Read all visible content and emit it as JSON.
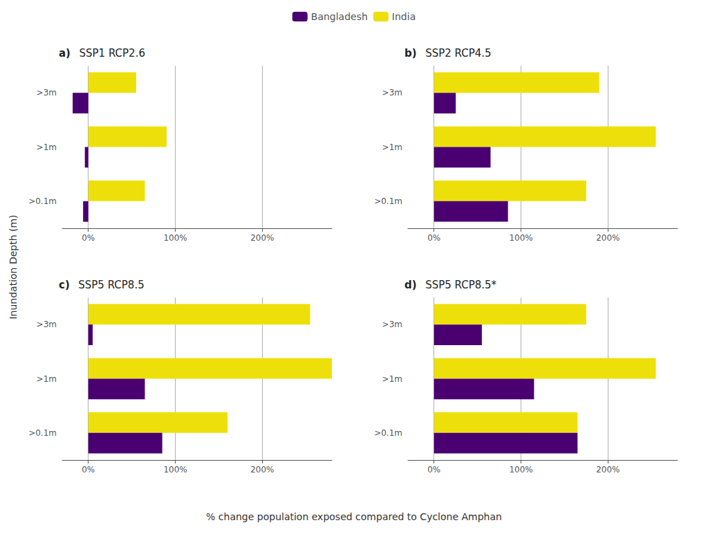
{
  "xlabel": "% change population exposed compared to Cyclone Amphan",
  "ylabel": "Inundation Depth (m)",
  "legend": "top",
  "chart_data": [
    {
      "type": "bar",
      "orientation": "horizontal",
      "title": "SSP1 RCP2.6",
      "annotations": [
        "a)"
      ],
      "categories": [
        ">3m",
        ">1m",
        ">0.1m"
      ],
      "series": [
        {
          "name": "Bangladesh",
          "color": "#4A0070",
          "values": [
            -18,
            -4,
            -6
          ]
        },
        {
          "name": "India",
          "color": "#EDE00A",
          "values": [
            55,
            90,
            65
          ]
        }
      ],
      "xlim": [
        -30,
        280
      ],
      "xticks": [
        {
          "value": 0,
          "label": "0%"
        },
        {
          "value": 100,
          "label": "100%"
        },
        {
          "value": 200,
          "label": "200%"
        }
      ],
      "grid": true
    },
    {
      "type": "bar",
      "orientation": "horizontal",
      "title": "SSP2 RCP4.5",
      "annotations": [
        "b)"
      ],
      "categories": [
        ">3m",
        ">1m",
        ">0.1m"
      ],
      "series": [
        {
          "name": "Bangladesh",
          "color": "#4A0070",
          "values": [
            25,
            65,
            85
          ]
        },
        {
          "name": "India",
          "color": "#EDE00A",
          "values": [
            190,
            255,
            175
          ]
        }
      ],
      "xlim": [
        -30,
        280
      ],
      "xticks": [
        {
          "value": 0,
          "label": "0%"
        },
        {
          "value": 100,
          "label": "100%"
        },
        {
          "value": 200,
          "label": "200%"
        }
      ],
      "grid": true
    },
    {
      "type": "bar",
      "orientation": "horizontal",
      "title": "SSP5 RCP8.5",
      "annotations": [
        "c)"
      ],
      "categories": [
        ">3m",
        ">1m",
        ">0.1m"
      ],
      "series": [
        {
          "name": "Bangladesh",
          "color": "#4A0070",
          "values": [
            5,
            65,
            85
          ]
        },
        {
          "name": "India",
          "color": "#EDE00A",
          "values": [
            255,
            280,
            160
          ]
        }
      ],
      "xlim": [
        -30,
        280
      ],
      "xticks": [
        {
          "value": 0,
          "label": "0%"
        },
        {
          "value": 100,
          "label": "100%"
        },
        {
          "value": 200,
          "label": "200%"
        }
      ],
      "grid": true
    },
    {
      "type": "bar",
      "orientation": "horizontal",
      "title": "SSP5 RCP8.5*",
      "annotations": [
        "d)"
      ],
      "categories": [
        ">3m",
        ">1m",
        ">0.1m"
      ],
      "series": [
        {
          "name": "Bangladesh",
          "color": "#4A0070",
          "values": [
            55,
            115,
            165
          ]
        },
        {
          "name": "India",
          "color": "#EDE00A",
          "values": [
            175,
            255,
            165
          ]
        }
      ],
      "xlim": [
        -30,
        280
      ],
      "xticks": [
        {
          "value": 0,
          "label": "0%"
        },
        {
          "value": 100,
          "label": "100%"
        },
        {
          "value": 200,
          "label": "200%"
        }
      ],
      "grid": true
    }
  ]
}
